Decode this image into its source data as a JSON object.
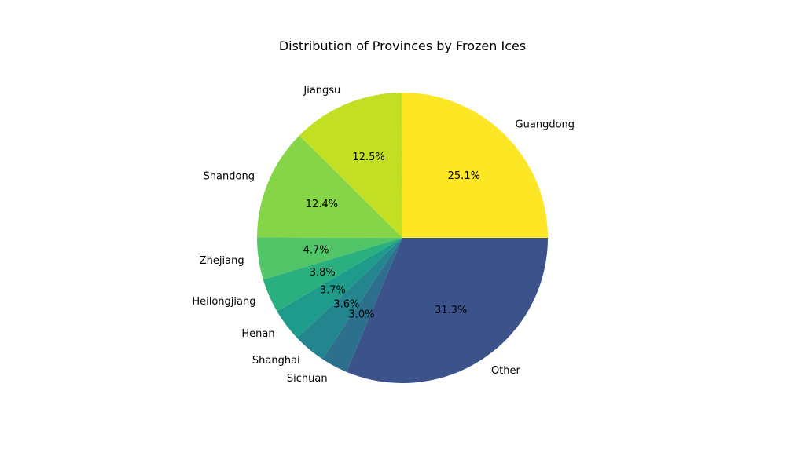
{
  "chart_data": {
    "type": "pie",
    "title": "Distribution of Provinces by Frozen Ices",
    "start_angle_deg": 0,
    "direction": "counterclockwise",
    "slices": [
      {
        "label": "Guangdong",
        "value": 25.1,
        "pct_label": "25.1%",
        "color": "#fde725"
      },
      {
        "label": "Jiangsu",
        "value": 12.5,
        "pct_label": "12.5%",
        "color": "#c2df23"
      },
      {
        "label": "Shandong",
        "value": 12.4,
        "pct_label": "12.4%",
        "color": "#86d549"
      },
      {
        "label": "Zhejiang",
        "value": 4.7,
        "pct_label": "4.7%",
        "color": "#52c569"
      },
      {
        "label": "Heilongjiang",
        "value": 3.8,
        "pct_label": "3.8%",
        "color": "#2ab07f"
      },
      {
        "label": "Henan",
        "value": 3.7,
        "pct_label": "3.7%",
        "color": "#1e9b8a"
      },
      {
        "label": "Shanghai",
        "value": 3.6,
        "pct_label": "3.6%",
        "color": "#25858e"
      },
      {
        "label": "Sichuan",
        "value": 3.0,
        "pct_label": "3.0%",
        "color": "#2d708e"
      },
      {
        "label": "Other",
        "value": 31.3,
        "pct_label": "31.3%",
        "color": "#3b528b"
      }
    ]
  }
}
